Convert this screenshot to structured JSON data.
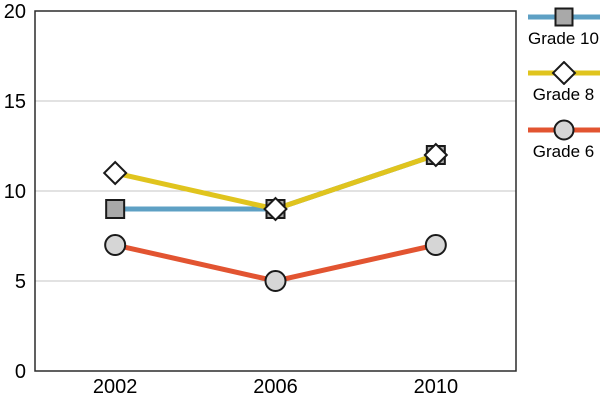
{
  "chart_data": {
    "type": "line",
    "title": "",
    "categories": [
      "2002",
      "2006",
      "2010"
    ],
    "series": [
      {
        "name": "Grade 10",
        "values": [
          9,
          9,
          12
        ],
        "line_color": "#5EA0C4",
        "marker": "square",
        "marker_fill": "#A9A9A9"
      },
      {
        "name": "Grade 8",
        "values": [
          11,
          9,
          12
        ],
        "line_color": "#E0C41E",
        "marker": "diamond",
        "marker_fill": "#FFFFFF"
      },
      {
        "name": "Grade 6",
        "values": [
          7,
          5,
          7
        ],
        "line_color": "#E25431",
        "marker": "circle",
        "marker_fill": "#D6D6D6"
      }
    ],
    "xlabel": "",
    "ylabel": "",
    "ylim": [
      0,
      20
    ],
    "yticks": [
      "0",
      "5",
      "10",
      "15",
      "20"
    ],
    "grid": true,
    "legend_position": "right",
    "line_draw_order": [
      0,
      2,
      1
    ],
    "marker_draw_order": [
      0,
      2,
      1
    ]
  },
  "style_colors": {
    "background": "#FFFFFF",
    "plot_border": "#2B2B2B",
    "grid_line": "#C4C4C4",
    "marker_stroke": "#1A1A1A",
    "axis_text": "#000000"
  }
}
